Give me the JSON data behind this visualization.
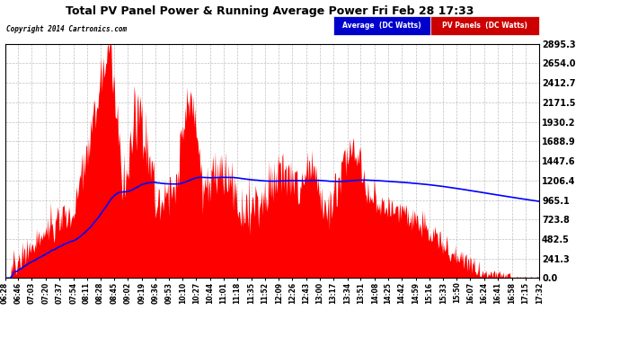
{
  "title": "Total PV Panel Power & Running Average Power Fri Feb 28 17:33",
  "copyright": "Copyright 2014 Cartronics.com",
  "legend_avg": "Average  (DC Watts)",
  "legend_pv": "PV Panels  (DC Watts)",
  "yticks": [
    0.0,
    241.3,
    482.5,
    723.8,
    965.1,
    1206.4,
    1447.6,
    1688.9,
    1930.2,
    2171.5,
    2412.7,
    2654.0,
    2895.3
  ],
  "ymax": 2895.3,
  "background_color": "#ffffff",
  "plot_bg_color": "#ffffff",
  "grid_color": "#b0b0b0",
  "fill_color": "#ff0000",
  "avg_color": "#0000ff",
  "time_labels": [
    "06:28",
    "06:46",
    "07:03",
    "07:20",
    "07:37",
    "07:54",
    "08:11",
    "08:28",
    "08:45",
    "09:02",
    "09:19",
    "09:36",
    "09:53",
    "10:10",
    "10:27",
    "10:44",
    "11:01",
    "11:18",
    "11:35",
    "11:52",
    "12:09",
    "12:26",
    "12:43",
    "13:00",
    "13:17",
    "13:34",
    "13:51",
    "14:08",
    "14:25",
    "14:42",
    "14:59",
    "15:16",
    "15:33",
    "15:50",
    "16:07",
    "16:24",
    "16:41",
    "16:58",
    "17:15",
    "17:32"
  ]
}
